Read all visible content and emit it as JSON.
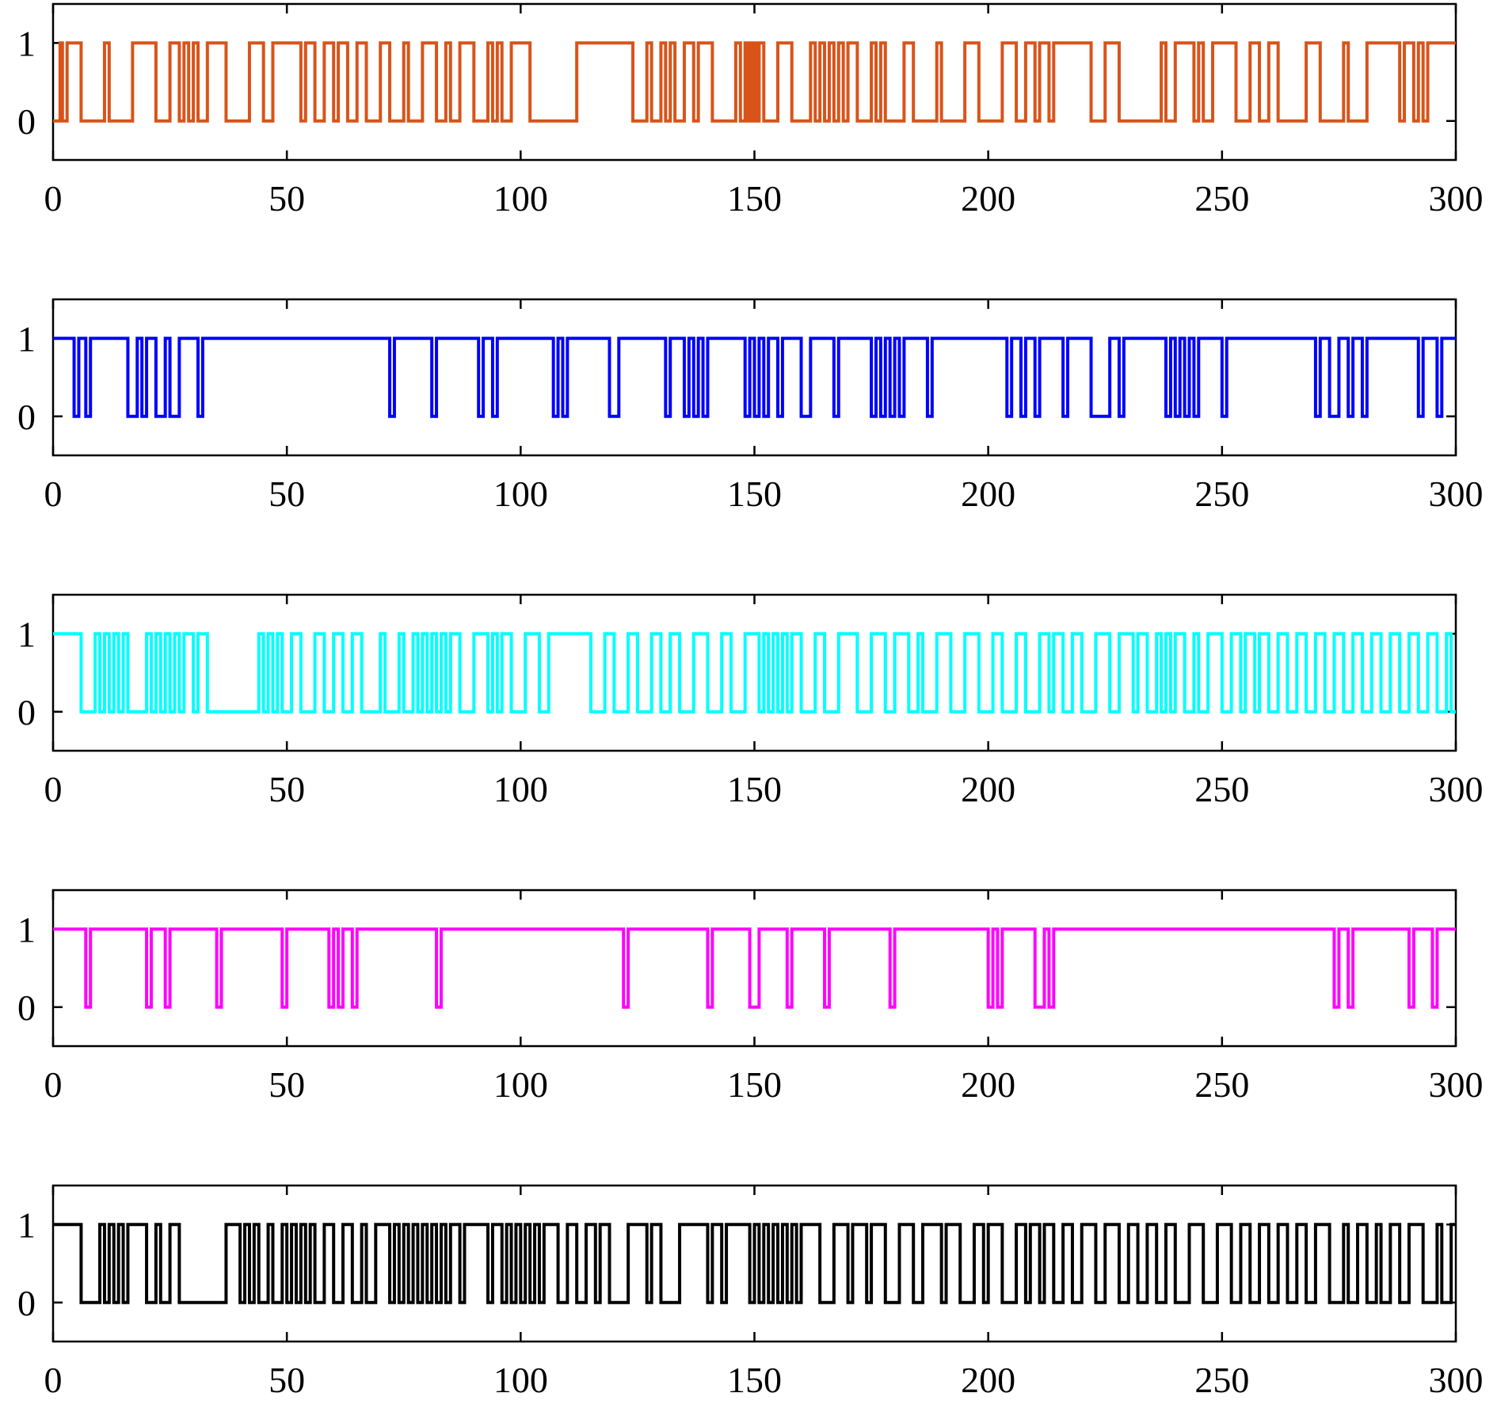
{
  "chart_data": [
    {
      "type": "line",
      "step": "post",
      "color": "#D95319",
      "xlim": [
        0,
        300
      ],
      "ylim": [
        -0.5,
        1.5
      ],
      "x_ticks": [
        "0",
        "50",
        "100",
        "150",
        "200",
        "250",
        "300"
      ],
      "y_ticks": [
        "0",
        "1"
      ],
      "grid": false,
      "transitions": [
        1.5,
        2,
        3,
        6,
        11,
        12,
        17,
        22,
        25,
        27,
        28,
        29,
        30,
        31,
        33,
        37,
        42,
        45,
        47,
        53,
        54,
        56,
        58,
        60,
        61,
        63,
        65,
        67,
        70,
        72,
        75,
        76,
        79,
        82,
        84,
        85,
        87,
        90,
        93,
        94,
        95,
        96,
        98,
        102,
        112,
        124,
        127,
        128,
        130,
        131,
        132,
        133,
        135,
        137,
        138,
        141,
        146,
        147,
        148,
        148.5,
        149,
        149.5,
        150,
        150.5,
        151,
        152,
        155,
        158,
        162,
        163,
        164,
        165,
        166,
        167,
        168,
        169,
        170,
        172,
        175,
        176,
        177,
        178,
        182,
        184,
        189,
        190,
        195,
        198,
        203,
        206,
        208,
        210,
        211,
        213,
        214,
        222,
        225,
        228,
        237,
        238,
        240,
        244,
        245,
        246,
        248,
        253,
        256,
        258,
        260,
        262,
        268,
        271,
        276,
        277,
        281,
        288,
        289,
        291,
        292,
        293,
        294
      ],
      "start_value": 0,
      "end_x": 300
    },
    {
      "type": "line",
      "step": "post",
      "color": "#0000FF",
      "xlim": [
        0,
        300
      ],
      "ylim": [
        -0.5,
        1.5
      ],
      "x_ticks": [
        "0",
        "50",
        "100",
        "150",
        "200",
        "250",
        "300"
      ],
      "y_ticks": [
        "0",
        "1"
      ],
      "grid": false,
      "transitions": [
        4.5,
        5.5,
        7,
        8,
        16,
        18,
        19,
        20,
        22,
        24,
        25,
        27,
        31,
        32,
        72,
        73,
        81,
        82,
        91,
        92,
        94,
        95,
        107,
        108,
        109,
        110,
        119,
        121,
        131,
        132,
        135,
        136,
        137,
        138,
        139,
        140,
        148,
        149,
        150,
        151,
        152,
        153,
        155,
        156,
        160,
        162,
        167,
        168,
        175,
        176,
        177,
        178,
        179,
        180,
        181,
        182,
        187,
        188,
        204,
        205,
        207,
        208,
        210,
        211,
        216,
        217,
        222,
        226,
        228,
        229,
        238,
        239,
        240,
        241,
        242,
        243,
        244,
        245,
        250,
        251,
        270,
        271,
        273,
        275,
        277,
        278,
        280,
        281,
        292,
        293,
        296,
        297
      ],
      "start_value": 1,
      "end_x": 300
    },
    {
      "type": "line",
      "step": "post",
      "color": "#00FFFF",
      "xlim": [
        0,
        300
      ],
      "ylim": [
        -0.5,
        1.5
      ],
      "x_ticks": [
        "0",
        "50",
        "100",
        "150",
        "200",
        "250",
        "300"
      ],
      "y_ticks": [
        "0",
        "1"
      ],
      "grid": false,
      "transitions": [
        6,
        9,
        10,
        11,
        12,
        13,
        14,
        15,
        16,
        20,
        21,
        22,
        23,
        24,
        25,
        26,
        27,
        28,
        30,
        31,
        33,
        44,
        45,
        46,
        47,
        48,
        49,
        51,
        53,
        56,
        58,
        60,
        62,
        64,
        66,
        70,
        71,
        74,
        75,
        77,
        78,
        79,
        80,
        81,
        82,
        83,
        84,
        85,
        87,
        90,
        93,
        94,
        95,
        96,
        98,
        101,
        104,
        106,
        115,
        118,
        120,
        123,
        125,
        128,
        130,
        132,
        134,
        137,
        140,
        143,
        145,
        148,
        151,
        152,
        153,
        154,
        155,
        156,
        157,
        158,
        160,
        163,
        165,
        168,
        172,
        175,
        178,
        180,
        183,
        185,
        186,
        189,
        192,
        195,
        198,
        201,
        203,
        206,
        208,
        211,
        213,
        214,
        216,
        218,
        220,
        223,
        226,
        228,
        231,
        232,
        234,
        236,
        237,
        238,
        239,
        240,
        242,
        244,
        245,
        247,
        250,
        252,
        254,
        255,
        257,
        258,
        260,
        262,
        264,
        266,
        268,
        270,
        272,
        274,
        276,
        278,
        280,
        282,
        284,
        286,
        288,
        290,
        292,
        294,
        296,
        298,
        299
      ],
      "start_value": 1,
      "end_x": 300
    },
    {
      "type": "line",
      "step": "post",
      "color": "#FF00FF",
      "xlim": [
        0,
        300
      ],
      "ylim": [
        -0.5,
        1.5
      ],
      "x_ticks": [
        "0",
        "50",
        "100",
        "150",
        "200",
        "250",
        "300"
      ],
      "y_ticks": [
        "0",
        "1"
      ],
      "grid": false,
      "transitions": [
        7,
        8,
        20,
        21,
        24,
        25,
        35,
        36,
        49,
        50,
        59,
        60,
        61,
        62,
        64,
        65,
        82,
        83,
        122,
        123,
        140,
        141,
        149,
        151,
        157,
        158,
        165,
        166,
        179,
        180,
        200,
        201,
        202,
        203,
        210,
        212,
        213,
        214,
        274,
        275,
        277,
        278,
        290,
        291,
        295,
        296
      ],
      "start_value": 1,
      "end_x": 300
    },
    {
      "type": "line",
      "step": "post",
      "color": "#000000",
      "xlim": [
        0,
        300
      ],
      "ylim": [
        -0.5,
        1.5
      ],
      "x_ticks": [
        "0",
        "50",
        "100",
        "150",
        "200",
        "250",
        "300"
      ],
      "y_ticks": [
        "0",
        "1"
      ],
      "grid": false,
      "transitions": [
        6,
        10,
        11,
        12,
        13,
        14,
        15,
        16,
        20,
        22,
        23,
        25,
        27,
        37,
        40,
        41,
        42,
        43,
        44,
        46,
        47,
        49,
        50,
        51,
        52,
        53,
        54,
        55,
        56,
        58,
        60,
        62,
        64,
        66,
        67,
        69,
        72,
        73,
        74,
        75,
        76,
        77,
        78,
        79,
        80,
        81,
        82,
        83,
        84,
        85,
        87,
        88,
        93,
        94,
        96,
        97,
        98,
        99,
        100,
        101,
        102,
        103,
        104,
        105,
        108,
        110,
        112,
        114,
        116,
        117,
        119,
        123,
        127,
        128,
        130,
        134,
        140,
        141,
        143,
        144,
        149,
        150,
        151,
        152,
        153,
        154,
        155,
        156,
        157,
        158,
        159,
        160,
        164,
        167,
        170,
        171,
        174,
        175,
        178,
        181,
        184,
        186,
        190,
        191,
        194,
        197,
        199,
        200,
        203,
        206,
        208,
        209,
        211,
        212,
        214,
        216,
        218,
        220,
        223,
        225,
        228,
        230,
        232,
        234,
        236,
        238,
        240,
        243,
        246,
        249,
        252,
        254,
        256,
        258,
        260,
        262,
        264,
        266,
        268,
        270,
        273,
        276,
        277,
        279,
        281,
        283,
        284,
        286,
        288,
        290,
        293,
        296,
        297,
        299
      ],
      "start_value": 1,
      "end_x": 300
    }
  ]
}
